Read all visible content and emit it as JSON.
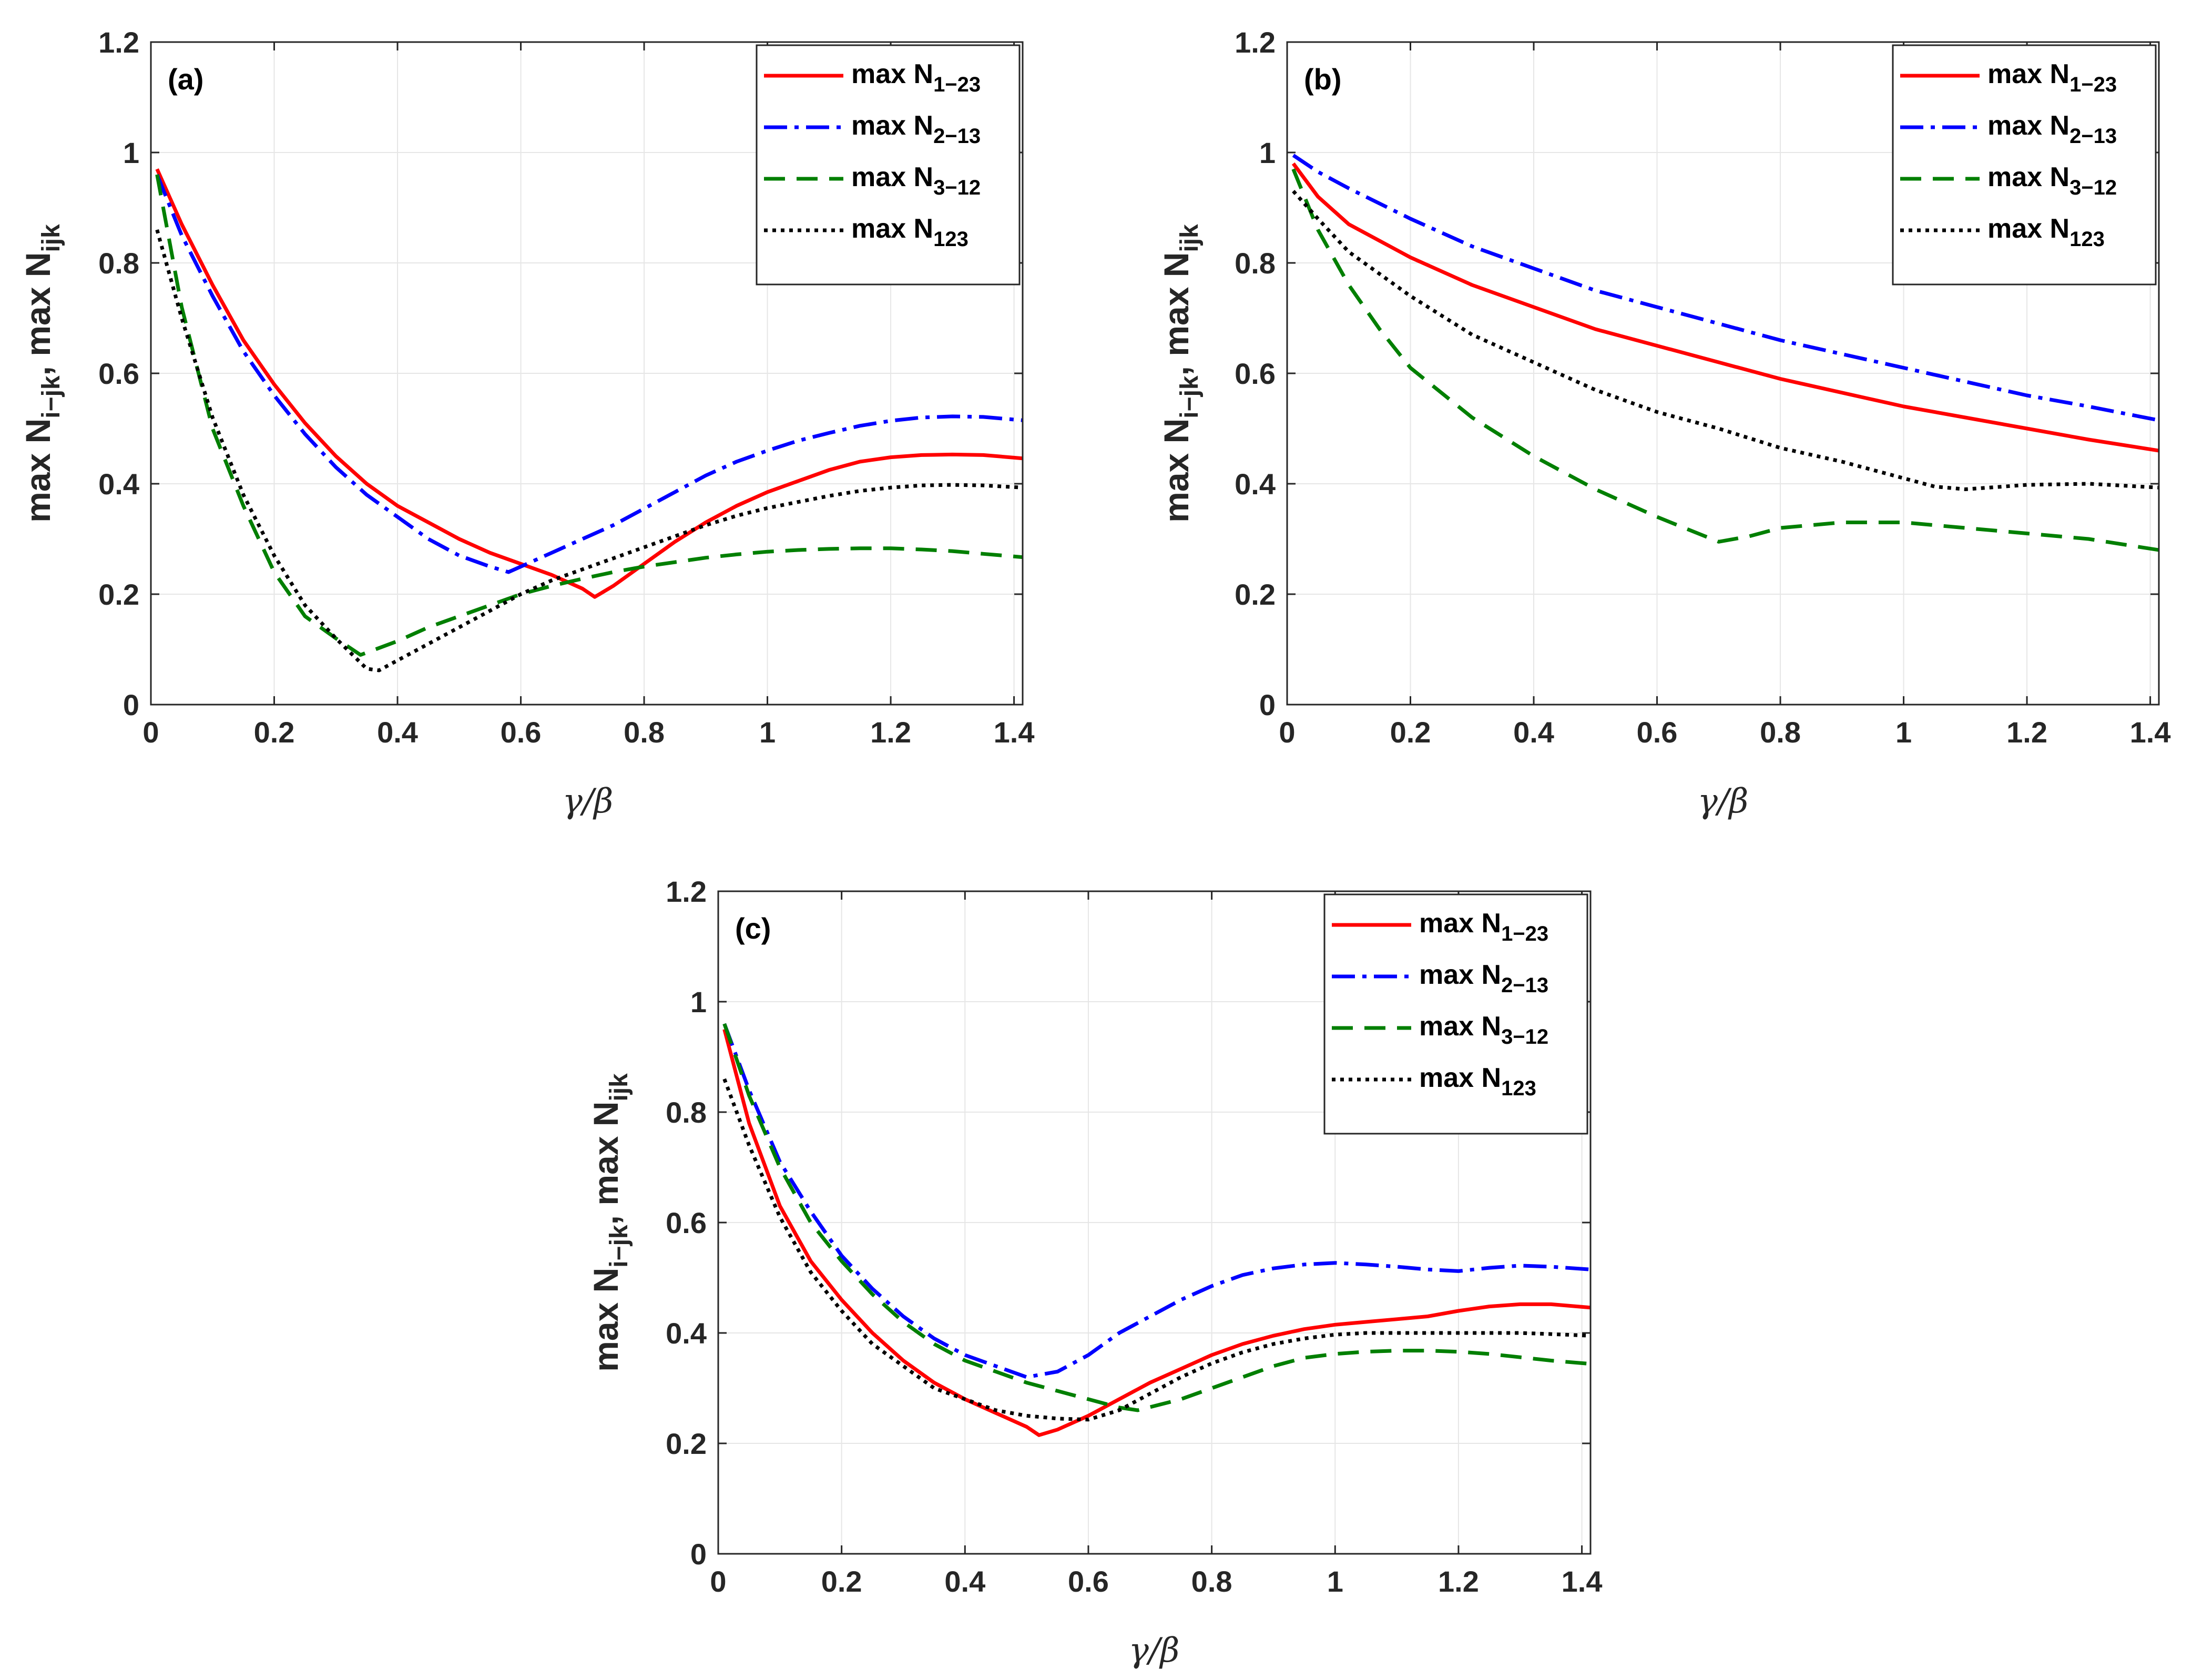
{
  "figure": {
    "xlabel": "γ/β",
    "ylabel": {
      "main1": "max N",
      "sub1": "i−jk",
      "sep": ", max N",
      "sub2": "ijk"
    }
  },
  "legend": [
    {
      "key": "n1",
      "prefix": "max N",
      "sub": "1−23",
      "color": "#ff0000",
      "dash": ""
    },
    {
      "key": "n2",
      "prefix": "max N",
      "sub": "2−13",
      "color": "#0000ff",
      "dash": "44 14 8 14"
    },
    {
      "key": "n3",
      "prefix": "max N",
      "sub": "3−12",
      "color": "#007f00",
      "dash": "40 22"
    },
    {
      "key": "n123",
      "prefix": "max N",
      "sub": "123",
      "color": "#000000",
      "dash": "7 9"
    }
  ],
  "chart_data": [
    {
      "type": "line",
      "panel": "(a)",
      "xlim": [
        0,
        1.414
      ],
      "ylim": [
        0,
        1.2
      ],
      "xticks": [
        "0",
        "0.2",
        "0.4",
        "0.6",
        "0.8",
        "1",
        "1.2",
        "1.4"
      ],
      "yticks": [
        "0",
        "0.2",
        "0.4",
        "0.6",
        "0.8",
        "1",
        "1.2"
      ],
      "grid": true,
      "legend_position": "top-right",
      "series": [
        {
          "key": "n1",
          "name": "max N1−23",
          "x": [
            0.01,
            0.05,
            0.1,
            0.15,
            0.2,
            0.25,
            0.3,
            0.35,
            0.4,
            0.45,
            0.5,
            0.55,
            0.6,
            0.65,
            0.7,
            0.72,
            0.75,
            0.8,
            0.85,
            0.9,
            0.95,
            1.0,
            1.05,
            1.1,
            1.15,
            1.2,
            1.25,
            1.3,
            1.35,
            1.414
          ],
          "y": [
            0.97,
            0.87,
            0.76,
            0.66,
            0.58,
            0.51,
            0.45,
            0.4,
            0.36,
            0.33,
            0.3,
            0.275,
            0.255,
            0.235,
            0.21,
            0.195,
            0.215,
            0.255,
            0.295,
            0.33,
            0.36,
            0.385,
            0.405,
            0.425,
            0.44,
            0.448,
            0.452,
            0.453,
            0.452,
            0.446
          ]
        },
        {
          "key": "n2",
          "name": "max N2−13",
          "x": [
            0.01,
            0.05,
            0.1,
            0.15,
            0.2,
            0.25,
            0.3,
            0.35,
            0.4,
            0.45,
            0.5,
            0.55,
            0.58,
            0.65,
            0.7,
            0.75,
            0.8,
            0.85,
            0.9,
            0.95,
            1.0,
            1.05,
            1.1,
            1.15,
            1.2,
            1.25,
            1.3,
            1.35,
            1.414
          ],
          "y": [
            0.96,
            0.85,
            0.74,
            0.64,
            0.56,
            0.49,
            0.43,
            0.38,
            0.34,
            0.3,
            0.27,
            0.25,
            0.24,
            0.275,
            0.3,
            0.325,
            0.355,
            0.385,
            0.415,
            0.44,
            0.46,
            0.478,
            0.492,
            0.505,
            0.514,
            0.52,
            0.522,
            0.521,
            0.515
          ]
        },
        {
          "key": "n3",
          "name": "max N3−12",
          "x": [
            0.01,
            0.05,
            0.1,
            0.15,
            0.2,
            0.25,
            0.3,
            0.34,
            0.4,
            0.45,
            0.5,
            0.55,
            0.6,
            0.65,
            0.7,
            0.75,
            0.8,
            0.85,
            0.9,
            0.95,
            1.0,
            1.05,
            1.1,
            1.15,
            1.2,
            1.25,
            1.3,
            1.35,
            1.414
          ],
          "y": [
            0.96,
            0.72,
            0.5,
            0.36,
            0.24,
            0.16,
            0.12,
            0.09,
            0.115,
            0.14,
            0.16,
            0.18,
            0.2,
            0.215,
            0.228,
            0.24,
            0.25,
            0.258,
            0.266,
            0.272,
            0.277,
            0.28,
            0.282,
            0.283,
            0.283,
            0.281,
            0.278,
            0.273,
            0.267
          ]
        },
        {
          "key": "n123",
          "name": "max N123",
          "x": [
            0.01,
            0.05,
            0.1,
            0.15,
            0.2,
            0.25,
            0.3,
            0.35,
            0.37,
            0.4,
            0.45,
            0.5,
            0.55,
            0.6,
            0.65,
            0.7,
            0.75,
            0.8,
            0.85,
            0.9,
            0.95,
            1.0,
            1.05,
            1.1,
            1.15,
            1.2,
            1.25,
            1.3,
            1.35,
            1.414
          ],
          "y": [
            0.86,
            0.7,
            0.52,
            0.38,
            0.27,
            0.18,
            0.12,
            0.065,
            0.062,
            0.08,
            0.11,
            0.14,
            0.17,
            0.2,
            0.225,
            0.245,
            0.265,
            0.285,
            0.305,
            0.325,
            0.342,
            0.356,
            0.367,
            0.378,
            0.387,
            0.393,
            0.397,
            0.398,
            0.397,
            0.393
          ]
        }
      ]
    },
    {
      "type": "line",
      "panel": "(b)",
      "xlim": [
        0,
        1.414
      ],
      "ylim": [
        0,
        1.2
      ],
      "xticks": [
        "0",
        "0.2",
        "0.4",
        "0.6",
        "0.8",
        "1",
        "1.2",
        "1.4"
      ],
      "yticks": [
        "0",
        "0.2",
        "0.4",
        "0.6",
        "0.8",
        "1",
        "1.2"
      ],
      "grid": true,
      "legend_position": "top-right",
      "series": [
        {
          "key": "n1",
          "name": "max N1−23",
          "x": [
            0.01,
            0.05,
            0.1,
            0.2,
            0.3,
            0.4,
            0.5,
            0.6,
            0.7,
            0.8,
            0.9,
            1.0,
            1.1,
            1.2,
            1.3,
            1.414
          ],
          "y": [
            0.98,
            0.92,
            0.87,
            0.81,
            0.76,
            0.72,
            0.68,
            0.65,
            0.62,
            0.59,
            0.565,
            0.54,
            0.52,
            0.5,
            0.48,
            0.46
          ]
        },
        {
          "key": "n2",
          "name": "max N2−13",
          "x": [
            0.01,
            0.05,
            0.1,
            0.2,
            0.3,
            0.4,
            0.5,
            0.6,
            0.7,
            0.8,
            0.9,
            1.0,
            1.1,
            1.2,
            1.3,
            1.414
          ],
          "y": [
            0.995,
            0.965,
            0.935,
            0.88,
            0.83,
            0.79,
            0.75,
            0.72,
            0.69,
            0.66,
            0.635,
            0.61,
            0.585,
            0.56,
            0.54,
            0.515
          ]
        },
        {
          "key": "n3",
          "name": "max N3−12",
          "x": [
            0.01,
            0.05,
            0.1,
            0.15,
            0.2,
            0.3,
            0.4,
            0.5,
            0.6,
            0.7,
            0.75,
            0.8,
            0.9,
            1.0,
            1.1,
            1.2,
            1.3,
            1.414
          ],
          "y": [
            0.97,
            0.86,
            0.76,
            0.68,
            0.61,
            0.52,
            0.45,
            0.39,
            0.34,
            0.295,
            0.305,
            0.32,
            0.33,
            0.33,
            0.32,
            0.31,
            0.3,
            0.28
          ]
        },
        {
          "key": "n123",
          "name": "max N123",
          "x": [
            0.01,
            0.05,
            0.1,
            0.2,
            0.3,
            0.4,
            0.5,
            0.6,
            0.7,
            0.8,
            0.9,
            1.0,
            1.05,
            1.1,
            1.2,
            1.3,
            1.414
          ],
          "y": [
            0.93,
            0.88,
            0.82,
            0.74,
            0.67,
            0.62,
            0.57,
            0.53,
            0.5,
            0.465,
            0.44,
            0.41,
            0.395,
            0.39,
            0.398,
            0.4,
            0.393
          ]
        }
      ]
    },
    {
      "type": "line",
      "panel": "(c)",
      "xlim": [
        0,
        1.414
      ],
      "ylim": [
        0,
        1.2
      ],
      "xticks": [
        "0",
        "0.2",
        "0.4",
        "0.6",
        "0.8",
        "1",
        "1.2",
        "1.4"
      ],
      "yticks": [
        "0",
        "0.2",
        "0.4",
        "0.6",
        "0.8",
        "1",
        "1.2"
      ],
      "grid": true,
      "legend_position": "top-right",
      "series": [
        {
          "key": "n1",
          "name": "max N1−23",
          "x": [
            0.01,
            0.05,
            0.1,
            0.15,
            0.2,
            0.25,
            0.3,
            0.35,
            0.4,
            0.45,
            0.5,
            0.52,
            0.55,
            0.6,
            0.65,
            0.7,
            0.75,
            0.8,
            0.85,
            0.9,
            0.95,
            1.0,
            1.05,
            1.1,
            1.15,
            1.2,
            1.25,
            1.3,
            1.35,
            1.414
          ],
          "y": [
            0.95,
            0.78,
            0.63,
            0.53,
            0.46,
            0.4,
            0.35,
            0.31,
            0.28,
            0.255,
            0.23,
            0.215,
            0.225,
            0.25,
            0.28,
            0.31,
            0.335,
            0.36,
            0.38,
            0.395,
            0.407,
            0.415,
            0.42,
            0.425,
            0.43,
            0.44,
            0.448,
            0.452,
            0.452,
            0.446
          ]
        },
        {
          "key": "n2",
          "name": "max N2−13",
          "x": [
            0.01,
            0.05,
            0.1,
            0.15,
            0.2,
            0.25,
            0.3,
            0.35,
            0.4,
            0.45,
            0.5,
            0.55,
            0.6,
            0.65,
            0.7,
            0.75,
            0.8,
            0.85,
            0.9,
            0.95,
            1.0,
            1.05,
            1.1,
            1.15,
            1.2,
            1.25,
            1.3,
            1.35,
            1.414
          ],
          "y": [
            0.96,
            0.84,
            0.71,
            0.62,
            0.54,
            0.48,
            0.43,
            0.39,
            0.36,
            0.34,
            0.32,
            0.33,
            0.36,
            0.4,
            0.43,
            0.46,
            0.485,
            0.505,
            0.517,
            0.524,
            0.527,
            0.524,
            0.52,
            0.515,
            0.512,
            0.518,
            0.522,
            0.52,
            0.515
          ]
        },
        {
          "key": "n3",
          "name": "max N3−12",
          "x": [
            0.01,
            0.05,
            0.1,
            0.15,
            0.2,
            0.25,
            0.3,
            0.35,
            0.4,
            0.45,
            0.5,
            0.55,
            0.6,
            0.65,
            0.68,
            0.75,
            0.8,
            0.85,
            0.9,
            0.95,
            1.0,
            1.05,
            1.1,
            1.15,
            1.2,
            1.25,
            1.3,
            1.35,
            1.414
          ],
          "y": [
            0.96,
            0.83,
            0.7,
            0.6,
            0.53,
            0.47,
            0.42,
            0.38,
            0.35,
            0.33,
            0.31,
            0.295,
            0.28,
            0.265,
            0.26,
            0.28,
            0.3,
            0.32,
            0.34,
            0.355,
            0.362,
            0.366,
            0.368,
            0.368,
            0.366,
            0.362,
            0.356,
            0.35,
            0.344
          ]
        },
        {
          "key": "n123",
          "name": "max N123",
          "x": [
            0.01,
            0.05,
            0.1,
            0.15,
            0.2,
            0.25,
            0.3,
            0.35,
            0.4,
            0.45,
            0.5,
            0.55,
            0.6,
            0.65,
            0.7,
            0.75,
            0.8,
            0.85,
            0.9,
            0.95,
            1.0,
            1.05,
            1.1,
            1.15,
            1.2,
            1.25,
            1.3,
            1.35,
            1.414
          ],
          "y": [
            0.86,
            0.74,
            0.61,
            0.51,
            0.44,
            0.38,
            0.34,
            0.3,
            0.28,
            0.26,
            0.25,
            0.245,
            0.243,
            0.26,
            0.29,
            0.32,
            0.345,
            0.365,
            0.38,
            0.39,
            0.397,
            0.4,
            0.4,
            0.4,
            0.4,
            0.4,
            0.4,
            0.398,
            0.395
          ]
        }
      ]
    }
  ]
}
